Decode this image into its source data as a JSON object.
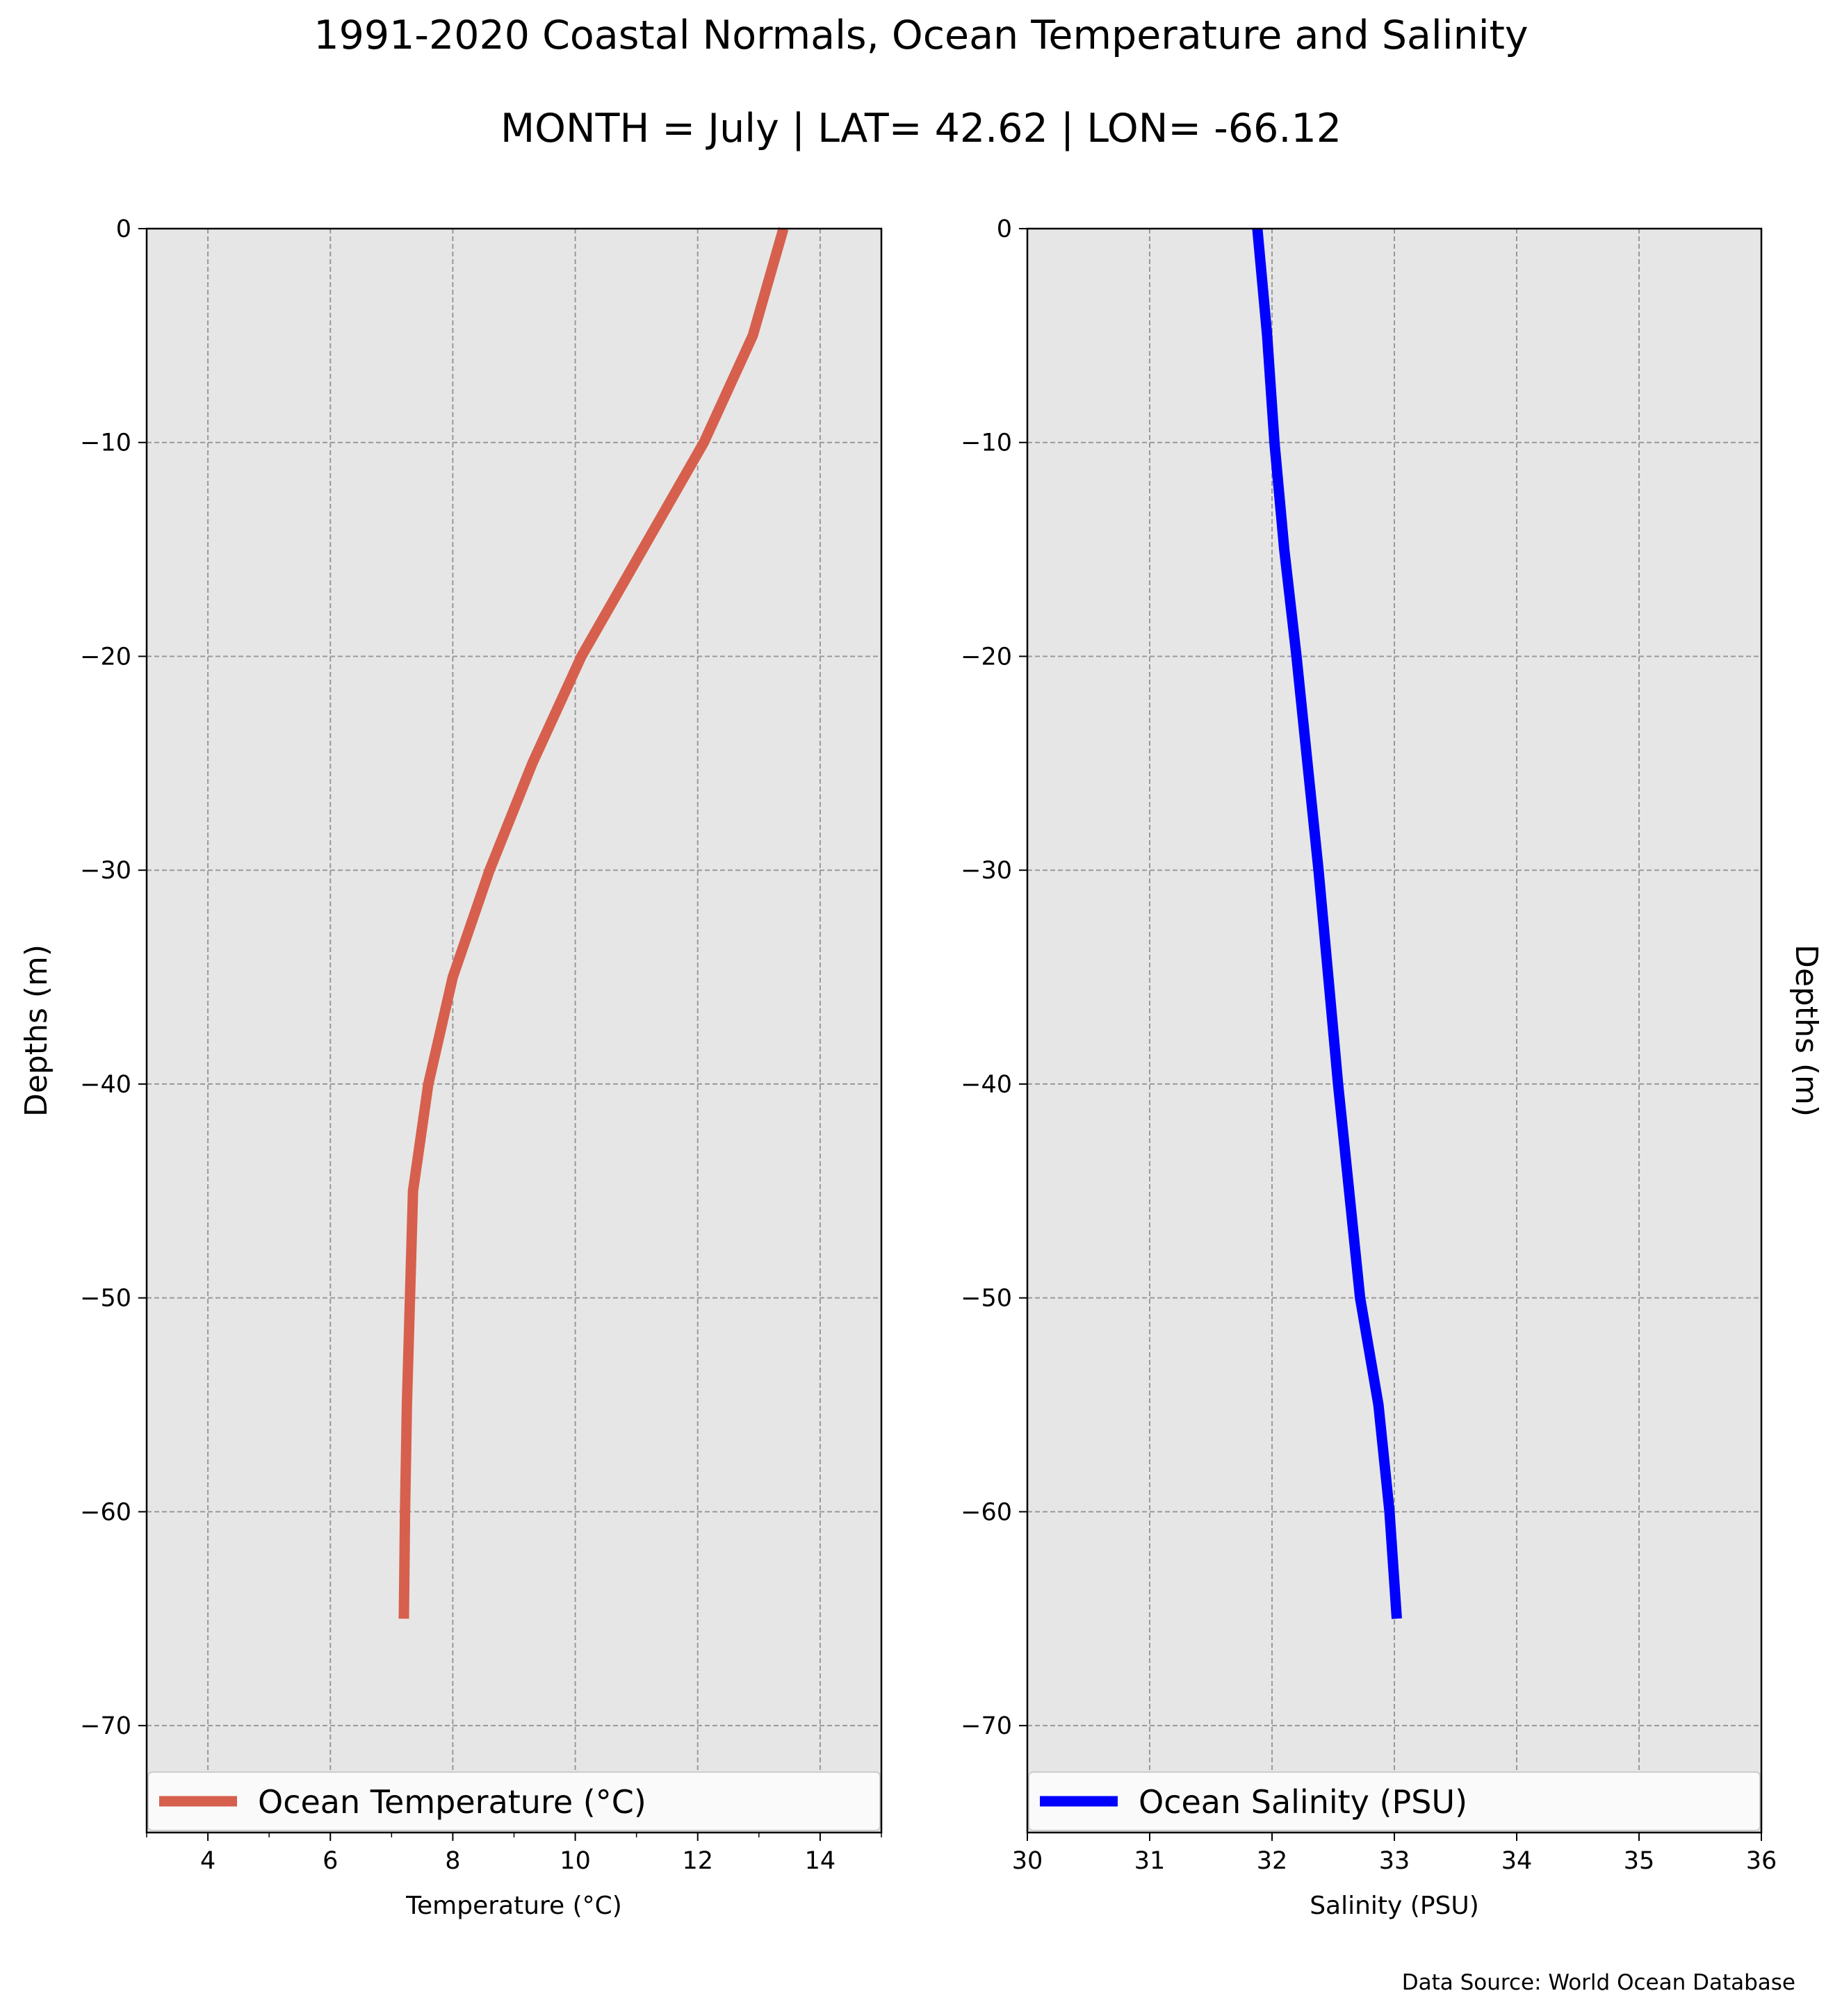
{
  "title": "1991-2020 Coastal Normals, Ocean Temperature and Salinity",
  "subtitle": "MONTH = July | LAT= 42.62 | LON= -66.12",
  "footer": "Data Source: World Ocean Database",
  "colors": {
    "temperature": "#d6604d",
    "salinity": "#0000ff",
    "plot_bg": "#e6e6e6",
    "grid": "#999999"
  },
  "chart_data": [
    {
      "type": "line",
      "xlabel": "Temperature ($^\\circ$C)",
      "ylabel": "Depths (m)",
      "xlim": [
        3,
        15
      ],
      "ylim": [
        -75,
        0
      ],
      "xticks": [
        4,
        6,
        8,
        10,
        12,
        14
      ],
      "yticks": [
        0,
        -10,
        -20,
        -30,
        -40,
        -50,
        -60,
        -70
      ],
      "grid": true,
      "legend_position": "bottom",
      "series": [
        {
          "name": "Ocean Temperature ($^\\circ$C)",
          "x": [
            13.4,
            12.9,
            12.1,
            11.1,
            10.1,
            9.3,
            8.6,
            8.0,
            7.6,
            7.35,
            7.3,
            7.25,
            7.22,
            7.2
          ],
          "y": [
            0,
            -5,
            -10,
            -15,
            -20,
            -25,
            -30,
            -35,
            -40,
            -45,
            -50,
            -55,
            -60,
            -65
          ]
        }
      ]
    },
    {
      "type": "line",
      "xlabel": "Salinity (PSU)",
      "ylabel": "Depths (m)",
      "xlim": [
        30,
        36
      ],
      "ylim": [
        -75,
        0
      ],
      "xticks": [
        30,
        31,
        32,
        33,
        34,
        35,
        36
      ],
      "yticks": [
        0,
        -10,
        -20,
        -30,
        -40,
        -50,
        -60,
        -70
      ],
      "grid": true,
      "legend_position": "bottom",
      "series": [
        {
          "name": "Ocean Salinity (PSU)",
          "x": [
            31.88,
            31.96,
            32.02,
            32.1,
            32.2,
            32.29,
            32.38,
            32.46,
            32.54,
            32.63,
            32.72,
            32.87,
            32.96,
            33.02
          ],
          "y": [
            0,
            -5,
            -10,
            -15,
            -20,
            -25,
            -30,
            -35,
            -40,
            -45,
            -50,
            -55,
            -60,
            -65
          ]
        }
      ]
    }
  ]
}
